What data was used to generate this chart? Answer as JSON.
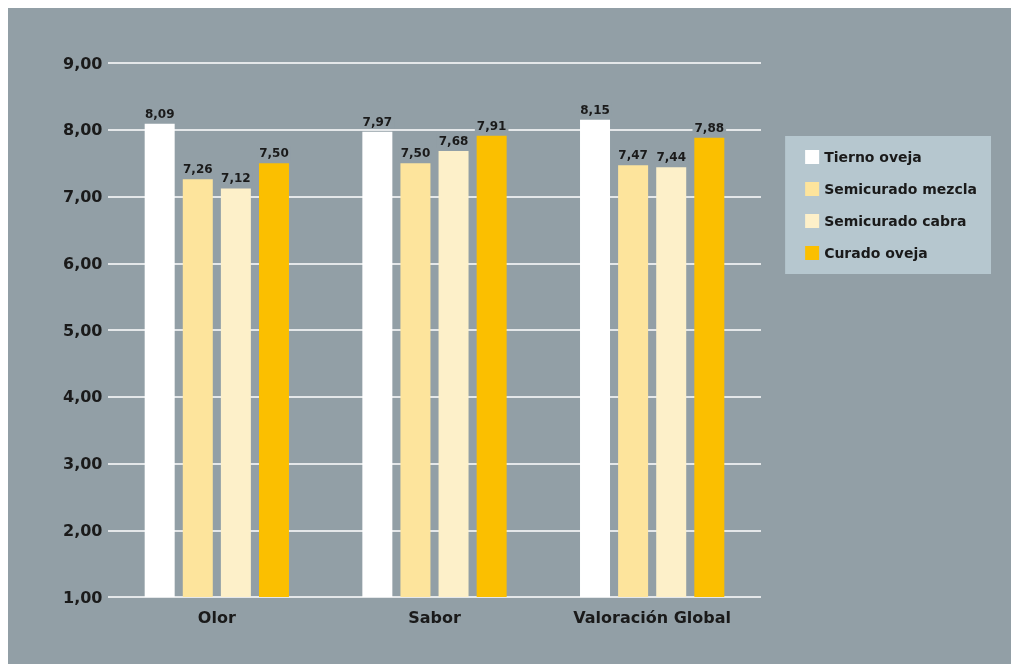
{
  "chart_data": {
    "type": "bar",
    "categories": [
      "Olor",
      "Sabor",
      "Valoración Global"
    ],
    "series": [
      {
        "name": "Tierno oveja",
        "color": "#ffffff",
        "values": [
          8.09,
          7.97,
          8.15
        ],
        "value_labels": [
          "8,09",
          "7,97",
          "8,15"
        ]
      },
      {
        "name": "Semicurado mezcla",
        "color": "#fde49c",
        "values": [
          7.26,
          7.5,
          7.47
        ],
        "value_labels": [
          "7,26",
          "7,50",
          "7,47"
        ]
      },
      {
        "name": "Semicurado cabra",
        "color": "#fdf0c9",
        "values": [
          7.12,
          7.68,
          7.44
        ],
        "value_labels": [
          "7,12",
          "7,68",
          "7,44"
        ]
      },
      {
        "name": "Curado oveja",
        "color": "#fbbf00",
        "values": [
          7.5,
          7.91,
          7.88
        ],
        "value_labels": [
          "7,50",
          "7,91",
          "7,88"
        ]
      }
    ],
    "ylim": [
      1,
      9
    ],
    "yticks": [
      {
        "value": 1,
        "label": "1,00"
      },
      {
        "value": 2,
        "label": "2,00"
      },
      {
        "value": 3,
        "label": "3,00"
      },
      {
        "value": 4,
        "label": "4,00"
      },
      {
        "value": 5,
        "label": "5,00"
      },
      {
        "value": 6,
        "label": "6,00"
      },
      {
        "value": 7,
        "label": "7,00"
      },
      {
        "value": 8,
        "label": "8,00"
      },
      {
        "value": 9,
        "label": "9,00"
      }
    ],
    "grid": "y",
    "legend": "right"
  }
}
